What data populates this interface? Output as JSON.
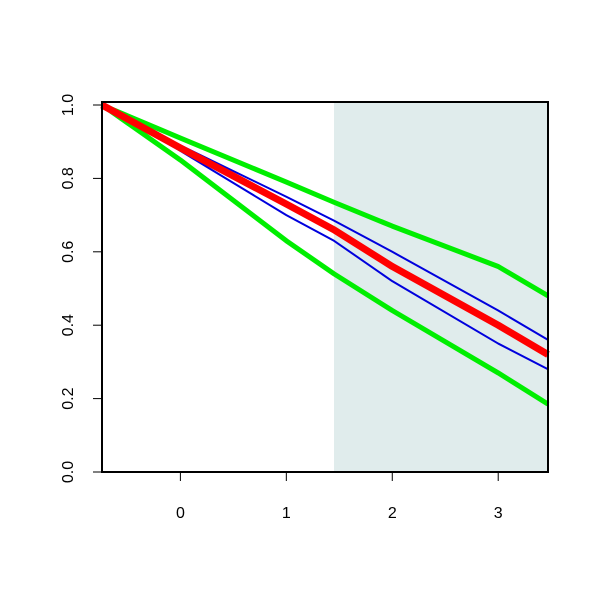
{
  "chart_data": {
    "type": "line",
    "x": [
      -0.74,
      0,
      1,
      1.45,
      2,
      3,
      3.47
    ],
    "series": [
      {
        "color": "#00ee00",
        "width": 5,
        "values": [
          1.0,
          0.91,
          0.79,
          0.735,
          0.67,
          0.56,
          0.48
        ]
      },
      {
        "color": "#00ee00",
        "width": 5,
        "values": [
          1.0,
          0.85,
          0.63,
          0.54,
          0.44,
          0.27,
          0.185
        ]
      },
      {
        "color": "#0000dd",
        "width": 2,
        "values": [
          1.0,
          0.89,
          0.75,
          0.685,
          0.6,
          0.44,
          0.36
        ]
      },
      {
        "color": "#0000dd",
        "width": 2,
        "values": [
          1.0,
          0.875,
          0.7,
          0.63,
          0.52,
          0.35,
          0.28
        ]
      },
      {
        "color": "#ff0000",
        "width": 7,
        "values": [
          1.0,
          0.883,
          0.73,
          0.66,
          0.56,
          0.4,
          0.32
        ]
      }
    ],
    "shaded_xrange": [
      1.45,
      3.47
    ],
    "shade_color": "#e0ecec",
    "xlim": [
      -0.74,
      3.47
    ],
    "ylim": [
      0,
      1
    ],
    "xticks": [
      0,
      1,
      2,
      3
    ],
    "yticks": [
      {
        "value": 0,
        "label": "0.0"
      },
      0.2,
      0.4,
      0.6,
      0.8,
      {
        "value": 1,
        "label": "1.0"
      }
    ]
  }
}
